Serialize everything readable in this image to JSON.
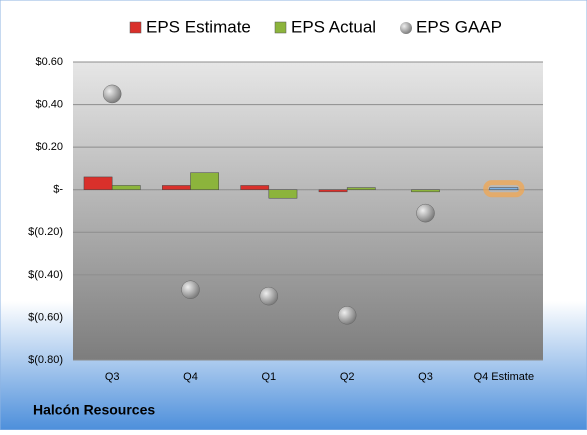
{
  "chart_data": {
    "type": "bar_scatter",
    "title": "Halcón Resources",
    "categories": [
      "Q3",
      "Q4",
      "Q1",
      "Q2",
      "Q3",
      "Q4 Estimate"
    ],
    "series": [
      {
        "name": "EPS Estimate",
        "color": "#d9302b",
        "values": [
          0.06,
          0.02,
          0.02,
          -0.01,
          null,
          0.01
        ]
      },
      {
        "name": "EPS Actual",
        "color": "#8cb43c",
        "values": [
          0.02,
          0.08,
          -0.04,
          0.01,
          -0.01,
          null
        ]
      },
      {
        "name": "EPS GAAP",
        "color": "#a6a6a6",
        "values": [
          0.45,
          -0.47,
          -0.5,
          -0.59,
          -0.11,
          null
        ]
      }
    ],
    "highlight": {
      "category": 5,
      "color": "#7fb2e5",
      "glow": "#f5a54a"
    },
    "ylim": [
      -0.8,
      0.6
    ],
    "yticks": [
      {
        "value": -0.8,
        "label": "$(0.80)"
      },
      {
        "value": -0.6,
        "label": "$(0.60)"
      },
      {
        "value": -0.4,
        "label": "$(0.40)"
      },
      {
        "value": -0.2,
        "label": "$(0.20)"
      },
      {
        "value": 0,
        "label": "$-"
      },
      {
        "value": 0.2,
        "label": "$0.20"
      },
      {
        "value": 0.4,
        "label": "$0.40"
      },
      {
        "value": 0.6,
        "label": "$0.60"
      }
    ],
    "grid": true
  }
}
